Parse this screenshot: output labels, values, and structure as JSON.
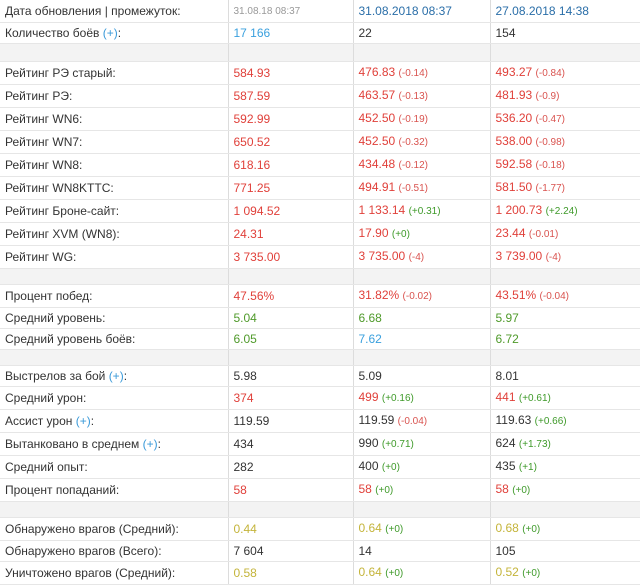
{
  "header": {
    "label": "Дата обновления | промежуток:",
    "cells": [
      {
        "text": "31.08.18 08:37",
        "tone": "gray"
      },
      {
        "text": "31.08.2018 08:37",
        "tone": "navy"
      },
      {
        "text": "27.08.2018 14:38",
        "tone": "navy"
      }
    ]
  },
  "groups": [
    [
      {
        "label": [
          "Количество боёв ",
          "(+)",
          ":"
        ],
        "cells": [
          {
            "text": "17 166",
            "tone": "blue"
          },
          {
            "text": "22",
            "tone": "black"
          },
          {
            "text": "154",
            "tone": "black"
          }
        ]
      }
    ],
    [
      {
        "label": [
          "Рейтинг РЭ старый:"
        ],
        "cells": [
          {
            "text": "584.93",
            "tone": "red"
          },
          {
            "text": "476.83",
            "delta": "(-0.14)",
            "tone": "red"
          },
          {
            "text": "493.27",
            "delta": "(-0.84)",
            "tone": "red"
          }
        ]
      },
      {
        "label": [
          "Рейтинг РЭ:"
        ],
        "cells": [
          {
            "text": "587.59",
            "tone": "red"
          },
          {
            "text": "463.57",
            "delta": "(-0.13)",
            "tone": "red"
          },
          {
            "text": "481.93",
            "delta": "(-0.9)",
            "tone": "red"
          }
        ]
      },
      {
        "label": [
          "Рейтинг WN6:"
        ],
        "cells": [
          {
            "text": "592.99",
            "tone": "red"
          },
          {
            "text": "452.50",
            "delta": "(-0.19)",
            "tone": "red"
          },
          {
            "text": "536.20",
            "delta": "(-0.47)",
            "tone": "red"
          }
        ]
      },
      {
        "label": [
          "Рейтинг WN7:"
        ],
        "cells": [
          {
            "text": "650.52",
            "tone": "red"
          },
          {
            "text": "452.50",
            "delta": "(-0.32)",
            "tone": "red"
          },
          {
            "text": "538.00",
            "delta": "(-0.98)",
            "tone": "red"
          }
        ]
      },
      {
        "label": [
          "Рейтинг WN8:"
        ],
        "cells": [
          {
            "text": "618.16",
            "tone": "red"
          },
          {
            "text": "434.48",
            "delta": "(-0.12)",
            "tone": "red"
          },
          {
            "text": "592.58",
            "delta": "(-0.18)",
            "tone": "red"
          }
        ]
      },
      {
        "label": [
          "Рейтинг WN8KTTC:"
        ],
        "cells": [
          {
            "text": "771.25",
            "tone": "red"
          },
          {
            "text": "494.91",
            "delta": "(-0.51)",
            "tone": "red"
          },
          {
            "text": "581.50",
            "delta": "(-1.77)",
            "tone": "red"
          }
        ]
      },
      {
        "label": [
          "Рейтинг Броне-сайт:"
        ],
        "cells": [
          {
            "text": "1 094.52",
            "tone": "red"
          },
          {
            "text": "1 133.14",
            "delta": "(+0.31)",
            "tone": "red"
          },
          {
            "text": "1 200.73",
            "delta": "(+2.24)",
            "tone": "red"
          }
        ]
      },
      {
        "label": [
          "Рейтинг XVM (WN8):"
        ],
        "cells": [
          {
            "text": "24.31",
            "tone": "red"
          },
          {
            "text": "17.90",
            "delta": "(+0)",
            "tone": "red"
          },
          {
            "text": "23.44",
            "delta": "(-0.01)",
            "tone": "red"
          }
        ]
      },
      {
        "label": [
          "Рейтинг WG:"
        ],
        "cells": [
          {
            "text": "3 735.00",
            "tone": "red"
          },
          {
            "text": "3 735.00",
            "delta": "(-4)",
            "tone": "red"
          },
          {
            "text": "3 739.00",
            "delta": "(-4)",
            "tone": "red"
          }
        ]
      }
    ],
    [
      {
        "label": [
          "Процент побед:"
        ],
        "cells": [
          {
            "text": "47.56%",
            "tone": "red"
          },
          {
            "text": "31.82%",
            "delta": "(-0.02)",
            "tone": "red"
          },
          {
            "text": "43.51%",
            "delta": "(-0.04)",
            "tone": "red"
          }
        ]
      },
      {
        "label": [
          "Средний уровень:"
        ],
        "cells": [
          {
            "text": "5.04",
            "tone": "green"
          },
          {
            "text": "6.68",
            "tone": "green"
          },
          {
            "text": "5.97",
            "tone": "green"
          }
        ]
      },
      {
        "label": [
          "Средний уровень боёв:"
        ],
        "cells": [
          {
            "text": "6.05",
            "tone": "green"
          },
          {
            "text": "7.62",
            "tone": "blue"
          },
          {
            "text": "6.72",
            "tone": "green"
          }
        ]
      }
    ],
    [
      {
        "label": [
          "Выстрелов за бой ",
          "(+)",
          ":"
        ],
        "cells": [
          {
            "text": "5.98",
            "tone": "black"
          },
          {
            "text": "5.09",
            "tone": "black"
          },
          {
            "text": "8.01",
            "tone": "black"
          }
        ]
      },
      {
        "label": [
          "Средний урон:"
        ],
        "cells": [
          {
            "text": "374",
            "tone": "red"
          },
          {
            "text": "499",
            "delta": "(+0.16)",
            "tone": "red"
          },
          {
            "text": "441",
            "delta": "(+0.61)",
            "tone": "red"
          }
        ]
      },
      {
        "label": [
          "Ассист урон ",
          "(+)",
          ":"
        ],
        "cells": [
          {
            "text": "119.59",
            "tone": "black"
          },
          {
            "text": "119.59",
            "delta": "(-0.04)",
            "tone": "black"
          },
          {
            "text": "119.63",
            "delta": "(+0.66)",
            "tone": "black"
          }
        ]
      },
      {
        "label": [
          "Вытанковано в среднем ",
          "(+)",
          ":"
        ],
        "cells": [
          {
            "text": "434",
            "tone": "black"
          },
          {
            "text": "990",
            "delta": "(+0.71)",
            "tone": "black"
          },
          {
            "text": "624",
            "delta": "(+1.73)",
            "tone": "black"
          }
        ]
      },
      {
        "label": [
          "Средний опыт:"
        ],
        "cells": [
          {
            "text": "282",
            "tone": "black"
          },
          {
            "text": "400",
            "delta": "(+0)",
            "tone": "black"
          },
          {
            "text": "435",
            "delta": "(+1)",
            "tone": "black"
          }
        ]
      },
      {
        "label": [
          "Процент попаданий:"
        ],
        "cells": [
          {
            "text": "58",
            "tone": "red"
          },
          {
            "text": "58",
            "delta": "(+0)",
            "tone": "red"
          },
          {
            "text": "58",
            "delta": "(+0)",
            "tone": "red"
          }
        ]
      }
    ],
    [
      {
        "label": [
          "Обнаружено врагов (Средний):"
        ],
        "cells": [
          {
            "text": "0.44",
            "tone": "olive"
          },
          {
            "text": "0.64",
            "delta": "(+0)",
            "tone": "olive"
          },
          {
            "text": "0.68",
            "delta": "(+0)",
            "tone": "olive"
          }
        ]
      },
      {
        "label": [
          "Обнаружено врагов (Всего):"
        ],
        "cells": [
          {
            "text": "7 604",
            "tone": "black"
          },
          {
            "text": "14",
            "tone": "black"
          },
          {
            "text": "105",
            "tone": "black"
          }
        ]
      },
      {
        "label": [
          "Уничтожено врагов (Средний):"
        ],
        "cells": [
          {
            "text": "0.58",
            "tone": "olive"
          },
          {
            "text": "0.64",
            "delta": "(+0)",
            "tone": "olive"
          },
          {
            "text": "0.52",
            "delta": "(+0)",
            "tone": "olive"
          }
        ]
      }
    ]
  ]
}
